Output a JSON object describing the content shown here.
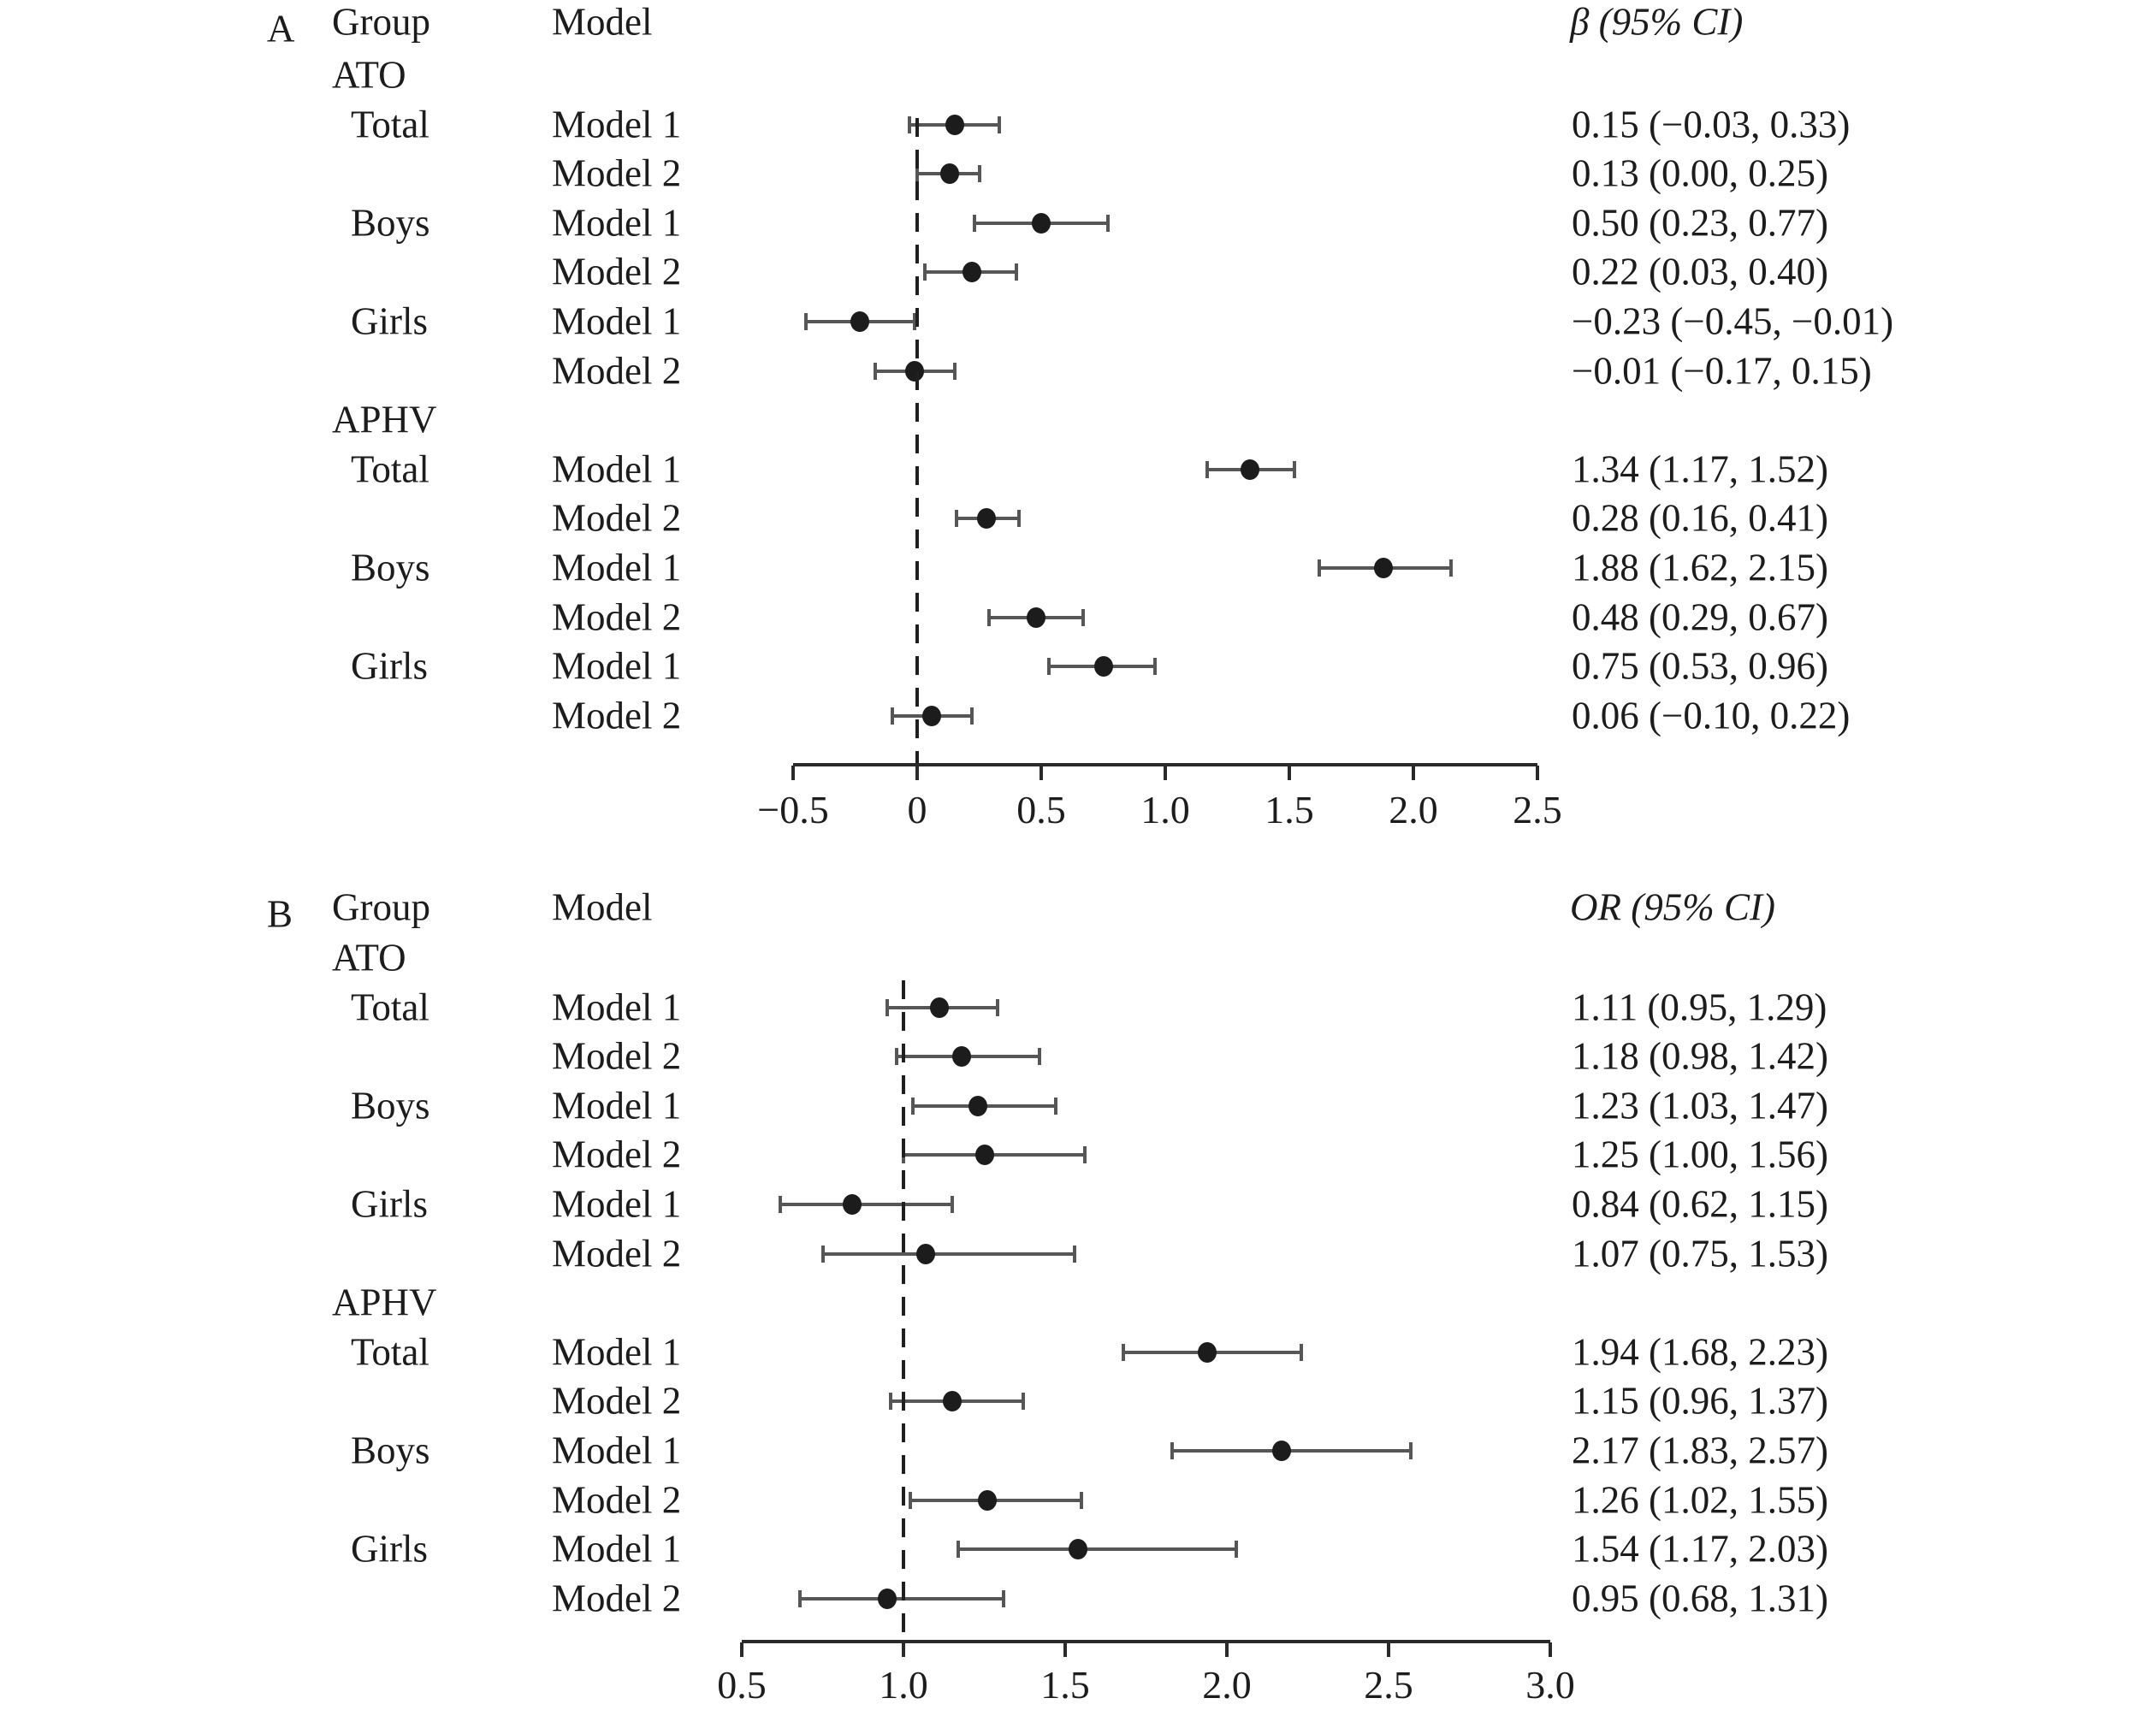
{
  "style": {
    "text_color": "#1c1c1c",
    "marker_color": "#1c1c1c",
    "ci_color": "#565656",
    "axis_color": "#2a2a2a",
    "refline_color": "#1f1f1f",
    "background": "#ffffff"
  },
  "chart_data": [
    {
      "type": "forest",
      "panel_label": "A",
      "columns": {
        "group": "Group",
        "model": "Model",
        "estimate": "β (95% CI)"
      },
      "xlim": [
        -0.5,
        2.5
      ],
      "reference_value": 0,
      "legend_position": "none",
      "grid": false,
      "ticks": [
        {
          "v": -0.5,
          "label": "−0.5"
        },
        {
          "v": 0,
          "label": "0"
        },
        {
          "v": 0.5,
          "label": "0.5"
        },
        {
          "v": 1.0,
          "label": "1.0"
        },
        {
          "v": 1.5,
          "label": "1.5"
        },
        {
          "v": 2.0,
          "label": "2.0"
        },
        {
          "v": 2.5,
          "label": "2.5"
        }
      ],
      "rows": [
        {
          "kind": "group",
          "label": "ATO"
        },
        {
          "kind": "data",
          "label": "Total",
          "model": "Model 1",
          "est": 0.15,
          "lo": -0.03,
          "hi": 0.33,
          "text": "0.15 (−0.03, 0.33)"
        },
        {
          "kind": "data",
          "label": "",
          "model": "Model 2",
          "est": 0.13,
          "lo": 0.0,
          "hi": 0.25,
          "text": "0.13 (0.00, 0.25)"
        },
        {
          "kind": "data",
          "label": "Boys",
          "model": "Model 1",
          "est": 0.5,
          "lo": 0.23,
          "hi": 0.77,
          "text": "0.50 (0.23, 0.77)"
        },
        {
          "kind": "data",
          "label": "",
          "model": "Model 2",
          "est": 0.22,
          "lo": 0.03,
          "hi": 0.4,
          "text": "0.22 (0.03, 0.40)"
        },
        {
          "kind": "data",
          "label": "Girls",
          "model": "Model 1",
          "est": -0.23,
          "lo": -0.45,
          "hi": -0.01,
          "text": "−0.23 (−0.45, −0.01)"
        },
        {
          "kind": "data",
          "label": "",
          "model": "Model 2",
          "est": -0.01,
          "lo": -0.17,
          "hi": 0.15,
          "text": "−0.01 (−0.17, 0.15)"
        },
        {
          "kind": "group",
          "label": "APHV"
        },
        {
          "kind": "data",
          "label": "Total",
          "model": "Model 1",
          "est": 1.34,
          "lo": 1.17,
          "hi": 1.52,
          "text": "1.34 (1.17, 1.52)"
        },
        {
          "kind": "data",
          "label": "",
          "model": "Model 2",
          "est": 0.28,
          "lo": 0.16,
          "hi": 0.41,
          "text": "0.28 (0.16, 0.41)"
        },
        {
          "kind": "data",
          "label": "Boys",
          "model": "Model 1",
          "est": 1.88,
          "lo": 1.62,
          "hi": 2.15,
          "text": "1.88 (1.62, 2.15)"
        },
        {
          "kind": "data",
          "label": "",
          "model": "Model 2",
          "est": 0.48,
          "lo": 0.29,
          "hi": 0.67,
          "text": "0.48 (0.29, 0.67)"
        },
        {
          "kind": "data",
          "label": "Girls",
          "model": "Model 1",
          "est": 0.75,
          "lo": 0.53,
          "hi": 0.96,
          "text": "0.75 (0.53, 0.96)"
        },
        {
          "kind": "data",
          "label": "",
          "model": "Model 2",
          "est": 0.06,
          "lo": -0.1,
          "hi": 0.22,
          "text": "0.06 (−0.10, 0.22)"
        }
      ]
    },
    {
      "type": "forest",
      "panel_label": "B",
      "columns": {
        "group": "Group",
        "model": "Model",
        "estimate": "OR (95% CI)"
      },
      "xlim": [
        0.5,
        3.0
      ],
      "reference_value": 1.0,
      "legend_position": "none",
      "grid": false,
      "ticks": [
        {
          "v": 0.5,
          "label": "0.5"
        },
        {
          "v": 1.0,
          "label": "1.0"
        },
        {
          "v": 1.5,
          "label": "1.5"
        },
        {
          "v": 2.0,
          "label": "2.0"
        },
        {
          "v": 2.5,
          "label": "2.5"
        },
        {
          "v": 3.0,
          "label": "3.0"
        }
      ],
      "rows": [
        {
          "kind": "group",
          "label": "ATO"
        },
        {
          "kind": "data",
          "label": "Total",
          "model": "Model 1",
          "est": 1.11,
          "lo": 0.95,
          "hi": 1.29,
          "text": "1.11 (0.95, 1.29)"
        },
        {
          "kind": "data",
          "label": "",
          "model": "Model 2",
          "est": 1.18,
          "lo": 0.98,
          "hi": 1.42,
          "text": "1.18 (0.98, 1.42)"
        },
        {
          "kind": "data",
          "label": "Boys",
          "model": "Model 1",
          "est": 1.23,
          "lo": 1.03,
          "hi": 1.47,
          "text": "1.23 (1.03, 1.47)"
        },
        {
          "kind": "data",
          "label": "",
          "model": "Model 2",
          "est": 1.25,
          "lo": 1.0,
          "hi": 1.56,
          "text": "1.25 (1.00, 1.56)"
        },
        {
          "kind": "data",
          "label": "Girls",
          "model": "Model 1",
          "est": 0.84,
          "lo": 0.62,
          "hi": 1.15,
          "text": "0.84 (0.62, 1.15)"
        },
        {
          "kind": "data",
          "label": "",
          "model": "Model 2",
          "est": 1.07,
          "lo": 0.75,
          "hi": 1.53,
          "text": "1.07 (0.75, 1.53)"
        },
        {
          "kind": "group",
          "label": "APHV"
        },
        {
          "kind": "data",
          "label": "Total",
          "model": "Model 1",
          "est": 1.94,
          "lo": 1.68,
          "hi": 2.23,
          "text": "1.94 (1.68, 2.23)"
        },
        {
          "kind": "data",
          "label": "",
          "model": "Model 2",
          "est": 1.15,
          "lo": 0.96,
          "hi": 1.37,
          "text": "1.15 (0.96, 1.37)"
        },
        {
          "kind": "data",
          "label": "Boys",
          "model": "Model 1",
          "est": 2.17,
          "lo": 1.83,
          "hi": 2.57,
          "text": "2.17 (1.83, 2.57)"
        },
        {
          "kind": "data",
          "label": "",
          "model": "Model 2",
          "est": 1.26,
          "lo": 1.02,
          "hi": 1.55,
          "text": "1.26 (1.02, 1.55)"
        },
        {
          "kind": "data",
          "label": "Girls",
          "model": "Model 1",
          "est": 1.54,
          "lo": 1.17,
          "hi": 2.03,
          "text": "1.54 (1.17, 2.03)"
        },
        {
          "kind": "data",
          "label": "",
          "model": "Model 2",
          "est": 0.95,
          "lo": 0.68,
          "hi": 1.31,
          "text": "0.95 (0.68, 1.31)"
        }
      ]
    }
  ]
}
